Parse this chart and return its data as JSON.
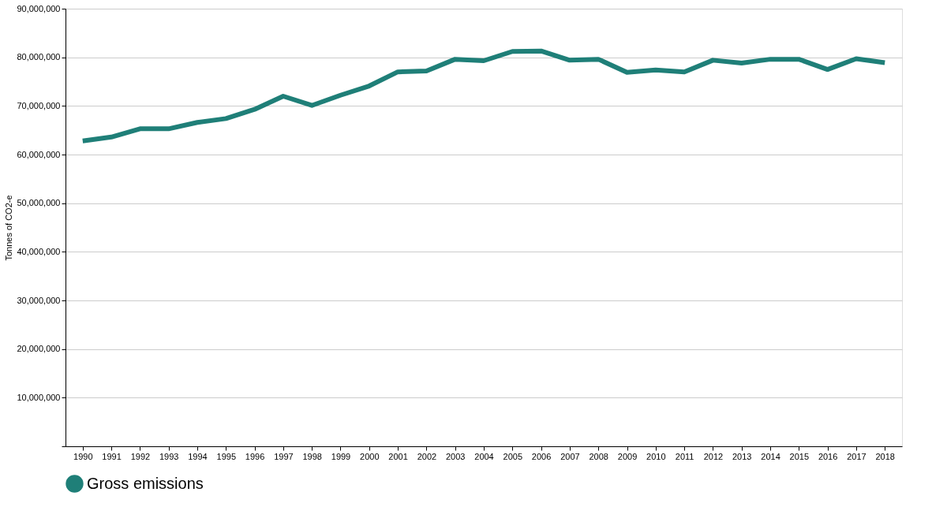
{
  "chart_data": {
    "type": "line",
    "ylabel": "Tonnes of CO2-e",
    "categories": [
      "1990",
      "1991",
      "1992",
      "1993",
      "1994",
      "1995",
      "1996",
      "1997",
      "1998",
      "1999",
      "2000",
      "2001",
      "2002",
      "2003",
      "2004",
      "2005",
      "2006",
      "2007",
      "2008",
      "2009",
      "2010",
      "2011",
      "2012",
      "2013",
      "2014",
      "2015",
      "2016",
      "2017",
      "2018"
    ],
    "series": [
      {
        "name": "Gross emissions",
        "color": "#1f7f78",
        "values": [
          62800000,
          63600000,
          65300000,
          65300000,
          66600000,
          67400000,
          69300000,
          72000000,
          70100000,
          72200000,
          74100000,
          77000000,
          77200000,
          79600000,
          79300000,
          81200000,
          81300000,
          79400000,
          79600000,
          76900000,
          77400000,
          77000000,
          79400000,
          78800000,
          79600000,
          79600000,
          77500000,
          79700000,
          78900000
        ]
      }
    ],
    "ylim": [
      0,
      90000000
    ],
    "yticks": [
      {
        "value": 0,
        "label": null
      },
      {
        "value": 10000000,
        "label": "10,000,000"
      },
      {
        "value": 20000000,
        "label": "20,000,000"
      },
      {
        "value": 30000000,
        "label": "30,000,000"
      },
      {
        "value": 40000000,
        "label": "40,000,000"
      },
      {
        "value": 50000000,
        "label": "50,000,000"
      },
      {
        "value": 60000000,
        "label": "60,000,000"
      },
      {
        "value": 70000000,
        "label": "70,000,000"
      },
      {
        "value": 80000000,
        "label": "80,000,000"
      },
      {
        "value": 90000000,
        "label": "90,000,000"
      }
    ],
    "grid": "y",
    "legend": "bottom",
    "marker": "none",
    "line_style": "solid"
  }
}
